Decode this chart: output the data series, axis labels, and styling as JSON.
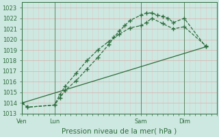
{
  "bg_color": "#cde8e0",
  "grid_color_major": "#d8b0b0",
  "grid_color_minor": "#e0c8c8",
  "line_color": "#2d6b3c",
  "title": "Pression niveau de la mer( hPa )",
  "day_labels": [
    "Ven",
    "Lun",
    "Sam",
    "Dim"
  ],
  "day_positions": [
    0,
    6,
    22,
    30
  ],
  "ylim": [
    1013.0,
    1023.5
  ],
  "yticks": [
    1013,
    1014,
    1015,
    1016,
    1017,
    1018,
    1019,
    1020,
    1021,
    1022,
    1023
  ],
  "xlim": [
    0,
    36
  ],
  "series1_x": [
    0,
    1,
    6,
    7,
    8,
    10,
    12,
    14,
    16,
    17,
    18,
    19,
    20,
    22,
    23,
    24,
    25,
    26,
    27,
    28,
    30,
    34
  ],
  "series1_y": [
    1014.0,
    1013.6,
    1013.8,
    1014.5,
    1015.2,
    1016.1,
    1017.2,
    1018.3,
    1019.5,
    1020.2,
    1020.8,
    1021.3,
    1021.8,
    1022.3,
    1022.5,
    1022.5,
    1022.3,
    1022.2,
    1022.0,
    1021.6,
    1022.0,
    1019.3
  ],
  "series2_x": [
    0,
    1,
    6,
    7,
    8,
    10,
    12,
    14,
    16,
    18,
    20,
    22,
    23,
    24,
    26,
    28,
    30,
    34
  ],
  "series2_y": [
    1014.0,
    1013.6,
    1013.8,
    1014.8,
    1015.6,
    1016.8,
    1018.0,
    1019.0,
    1019.8,
    1020.5,
    1021.1,
    1021.3,
    1021.6,
    1022.0,
    1021.5,
    1021.0,
    1021.2,
    1019.4
  ],
  "series3_x": [
    0,
    34
  ],
  "series3_y": [
    1014.0,
    1019.3
  ],
  "vline_x": [
    0,
    6,
    22,
    30
  ],
  "title_fontsize": 7.5,
  "tick_fontsize": 6.0
}
